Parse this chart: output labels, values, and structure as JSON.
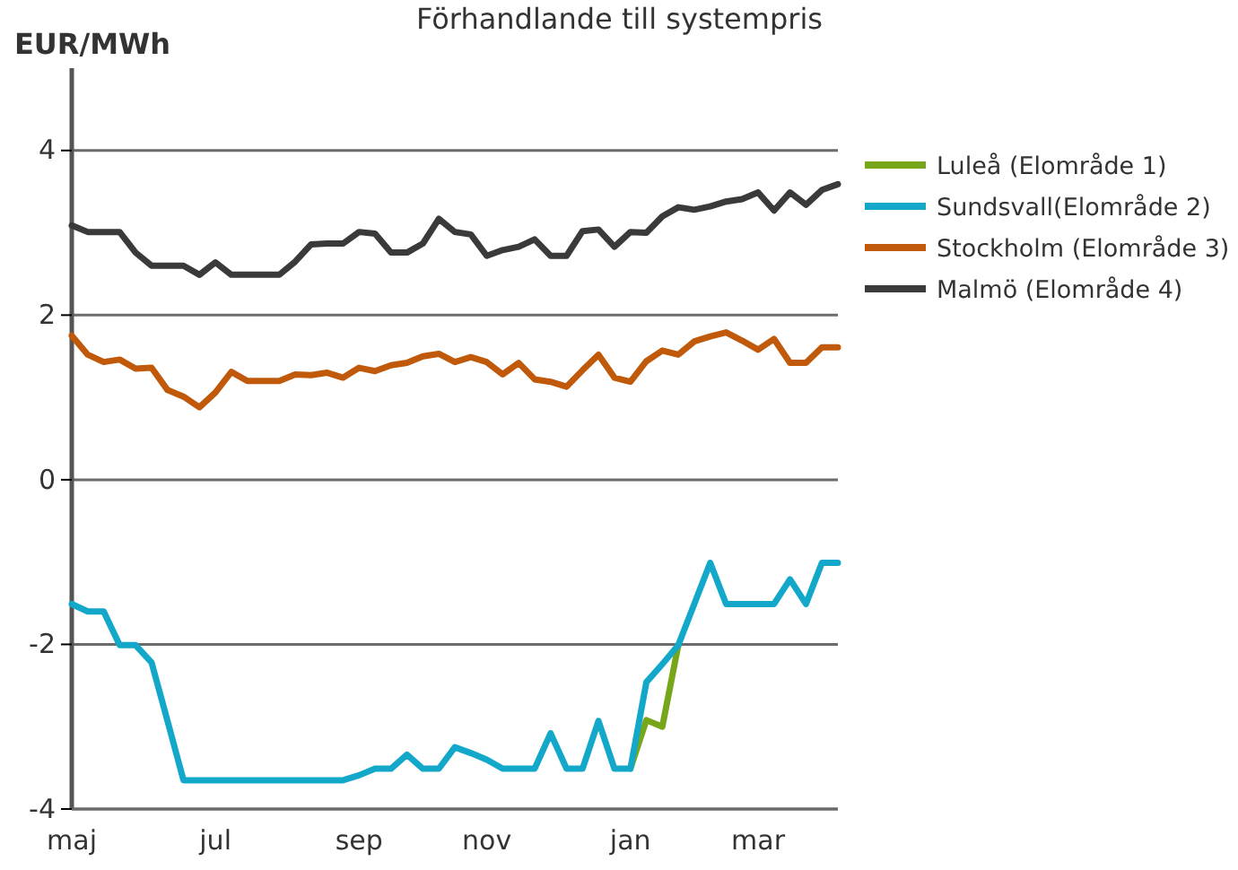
{
  "chart_data": {
    "type": "line",
    "title": "Förhandlande till systempris",
    "ylabel": "EUR/MWh",
    "categories": [
      "maj",
      null,
      null,
      null,
      null,
      null,
      null,
      null,
      null,
      "jul",
      null,
      null,
      null,
      null,
      null,
      null,
      null,
      null,
      "sep",
      null,
      null,
      null,
      null,
      null,
      null,
      null,
      "nov",
      null,
      null,
      null,
      null,
      null,
      null,
      null,
      null,
      "jan",
      null,
      null,
      null,
      null,
      null,
      null,
      null,
      "mar",
      null,
      null,
      null,
      null,
      null
    ],
    "ylim": [
      -4,
      5
    ],
    "yticks": [
      -4,
      -2,
      0,
      2,
      4
    ],
    "grid": "y",
    "legend": "right",
    "line_style": "solid",
    "marker": "none",
    "series": [
      {
        "name": "Luleå (Elområde 1)",
        "color": "#77a61a",
        "values": [
          null,
          null,
          null,
          null,
          null,
          null,
          null,
          null,
          null,
          null,
          null,
          null,
          null,
          null,
          null,
          null,
          null,
          null,
          null,
          null,
          null,
          null,
          null,
          null,
          null,
          null,
          null,
          null,
          null,
          null,
          null,
          null,
          null,
          null,
          null,
          -3.51,
          -2.92,
          -3.0,
          -2.01,
          null,
          null,
          null,
          null,
          null,
          null,
          null,
          null,
          null,
          null
        ]
      },
      {
        "name": "Sundsvall(Elområde 2)",
        "color": "#13a8c9",
        "values": [
          -1.51,
          -1.6,
          -1.6,
          -2.01,
          -2.01,
          -2.22,
          -2.93,
          -3.65,
          -3.65,
          -3.65,
          -3.65,
          -3.65,
          -3.65,
          -3.65,
          -3.65,
          -3.65,
          -3.65,
          -3.65,
          -3.59,
          -3.51,
          -3.51,
          -3.34,
          -3.51,
          -3.51,
          -3.25,
          -3.32,
          -3.4,
          -3.51,
          -3.51,
          -3.51,
          -3.08,
          -3.51,
          -3.51,
          -2.93,
          -3.51,
          -3.51,
          -2.46,
          -2.24,
          -2.01,
          -1.51,
          -1.01,
          -1.51,
          -1.51,
          -1.51,
          -1.51,
          -1.21,
          -1.51,
          -1.01,
          -1.01
        ]
      },
      {
        "name": "Stockholm (Elområde 3)",
        "color": "#c05a0a",
        "values": [
          1.75,
          1.52,
          1.43,
          1.46,
          1.35,
          1.36,
          1.09,
          1.01,
          0.88,
          1.06,
          1.31,
          1.2,
          1.2,
          1.2,
          1.28,
          1.27,
          1.3,
          1.24,
          1.36,
          1.32,
          1.39,
          1.42,
          1.5,
          1.53,
          1.43,
          1.49,
          1.43,
          1.28,
          1.42,
          1.22,
          1.19,
          1.13,
          1.33,
          1.52,
          1.24,
          1.19,
          1.44,
          1.57,
          1.52,
          1.68,
          1.74,
          1.79,
          1.69,
          1.58,
          1.71,
          1.42,
          1.42,
          1.61,
          1.61
        ]
      },
      {
        "name": "Malmö (Elområde 4)",
        "color": "#3a3a3a",
        "values": [
          3.09,
          3.01,
          3.01,
          3.01,
          2.76,
          2.6,
          2.6,
          2.6,
          2.49,
          2.64,
          2.49,
          2.49,
          2.49,
          2.49,
          2.65,
          2.86,
          2.87,
          2.87,
          3.01,
          2.99,
          2.76,
          2.76,
          2.87,
          3.17,
          3.01,
          2.98,
          2.72,
          2.79,
          2.83,
          2.92,
          2.72,
          2.72,
          3.02,
          3.04,
          2.83,
          3.01,
          3.0,
          3.2,
          3.31,
          3.28,
          3.32,
          3.38,
          3.41,
          3.49,
          3.27,
          3.49,
          3.34,
          3.52,
          3.59
        ]
      }
    ]
  }
}
